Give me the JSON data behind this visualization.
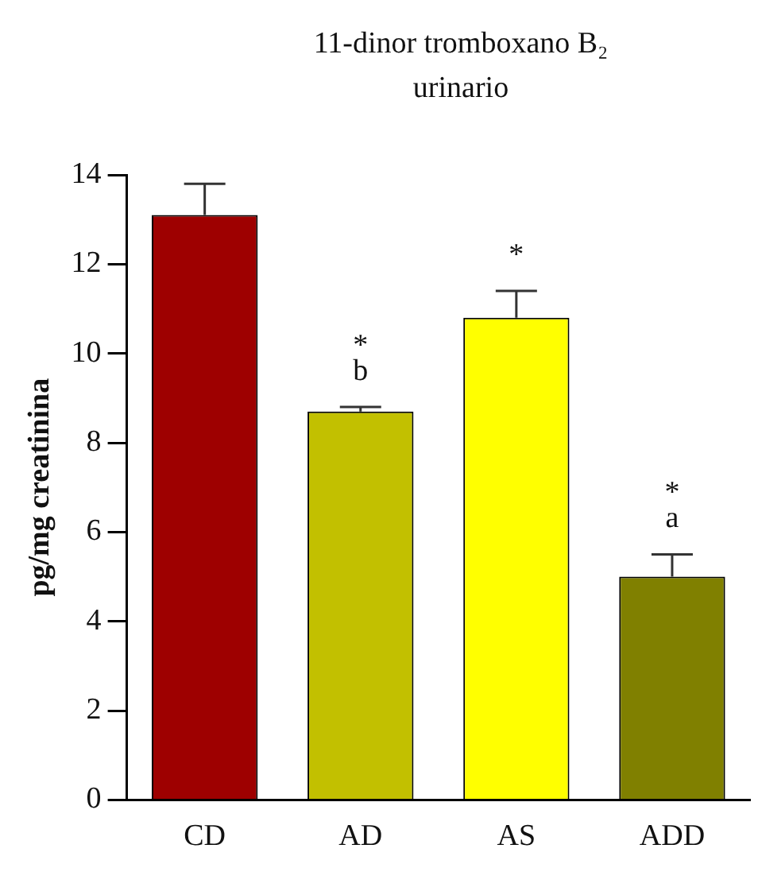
{
  "chart_data": {
    "type": "bar",
    "title": "11-dinor tromboxano B₂ urinario",
    "ylabel": "pg/mg creatinina",
    "categories": [
      "CD",
      "AD",
      "AS",
      "ADD"
    ],
    "values": [
      13.1,
      8.7,
      10.8,
      5.0
    ],
    "colors": [
      "#9e0000",
      "#c2c000",
      "#ffff00",
      "#808000"
    ],
    "errors": [
      [
        13.1,
        13.8
      ],
      [
        8.7,
        8.8
      ],
      [
        10.8,
        11.4
      ],
      [
        5.0,
        5.5
      ]
    ],
    "ylim": [
      0,
      14
    ],
    "yticks": [
      0,
      2,
      4,
      6,
      8,
      10,
      12,
      14
    ],
    "grid": false,
    "legend": false,
    "annotations": [
      {
        "text": "b",
        "x": "AD",
        "y": 8.8
      },
      {
        "text": "*",
        "x": "AD",
        "y": 8.8
      },
      {
        "text": "*",
        "x": "AS",
        "y": 11.4
      },
      {
        "text": "a",
        "x": "ADD",
        "y": 5.5
      },
      {
        "text": "*",
        "x": "ADD",
        "y": 5.5
      }
    ]
  }
}
